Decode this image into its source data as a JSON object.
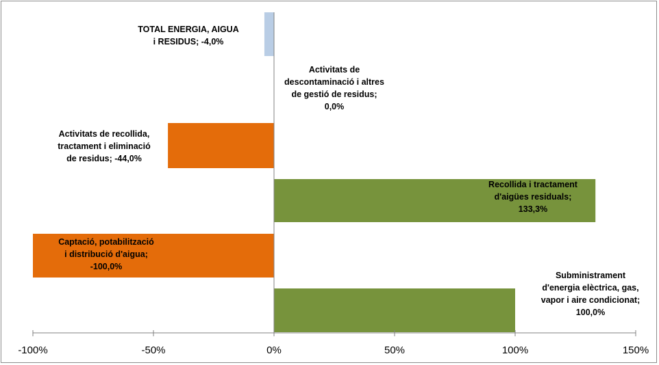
{
  "chart_data": {
    "type": "bar",
    "orientation": "horizontal",
    "categories": [
      "TOTAL ENERGIA, AIGUA i RESIDUS",
      "Activitats de descontaminació i altres de gestió de residus",
      "Activitats de recollida, tractament i eliminació de residus",
      "Recollida i tractament d'aigües residuals",
      "Captació, potabilització i distribució d'aigua",
      "Subministrament d'energia elèctrica, gas, vapor i aire condicionat"
    ],
    "values": [
      -4.0,
      0.0,
      -44.0,
      133.3,
      -100.0,
      100.0
    ],
    "bar_colors": [
      "#b9cde5",
      "#77933c",
      "#e46c0a",
      "#77933c",
      "#e46c0a",
      "#77933c"
    ],
    "data_labels": [
      [
        "TOTAL ENERGIA,  AIGUA",
        "i RESIDUS;  -4,0%"
      ],
      [
        "Activitats  de",
        "descontaminació  i altres",
        "de gestió de residus;",
        "0,0%"
      ],
      [
        "Activitats  de recollida,",
        "tractament  i eliminació",
        "de residus; -44,0%"
      ],
      [
        "Recollida i tractament",
        "d'aigües residuals;",
        "133,3%"
      ],
      [
        "Captació,  potabilització",
        "i distribució d'aigua;",
        "-100,0%"
      ],
      [
        "Subministrament",
        "d'energia elèctrica, gas,",
        "vapor i aire condicionat;",
        "100,0%"
      ]
    ],
    "x_ticks": [
      -100,
      -50,
      0,
      50,
      100,
      150
    ],
    "x_tick_labels": [
      "-100%",
      "-50%",
      "0%",
      "50%",
      "100%",
      "150%"
    ],
    "xlim": [
      -100,
      150
    ],
    "title": "",
    "xlabel": "",
    "ylabel": "",
    "grid": false,
    "legend": "none"
  }
}
